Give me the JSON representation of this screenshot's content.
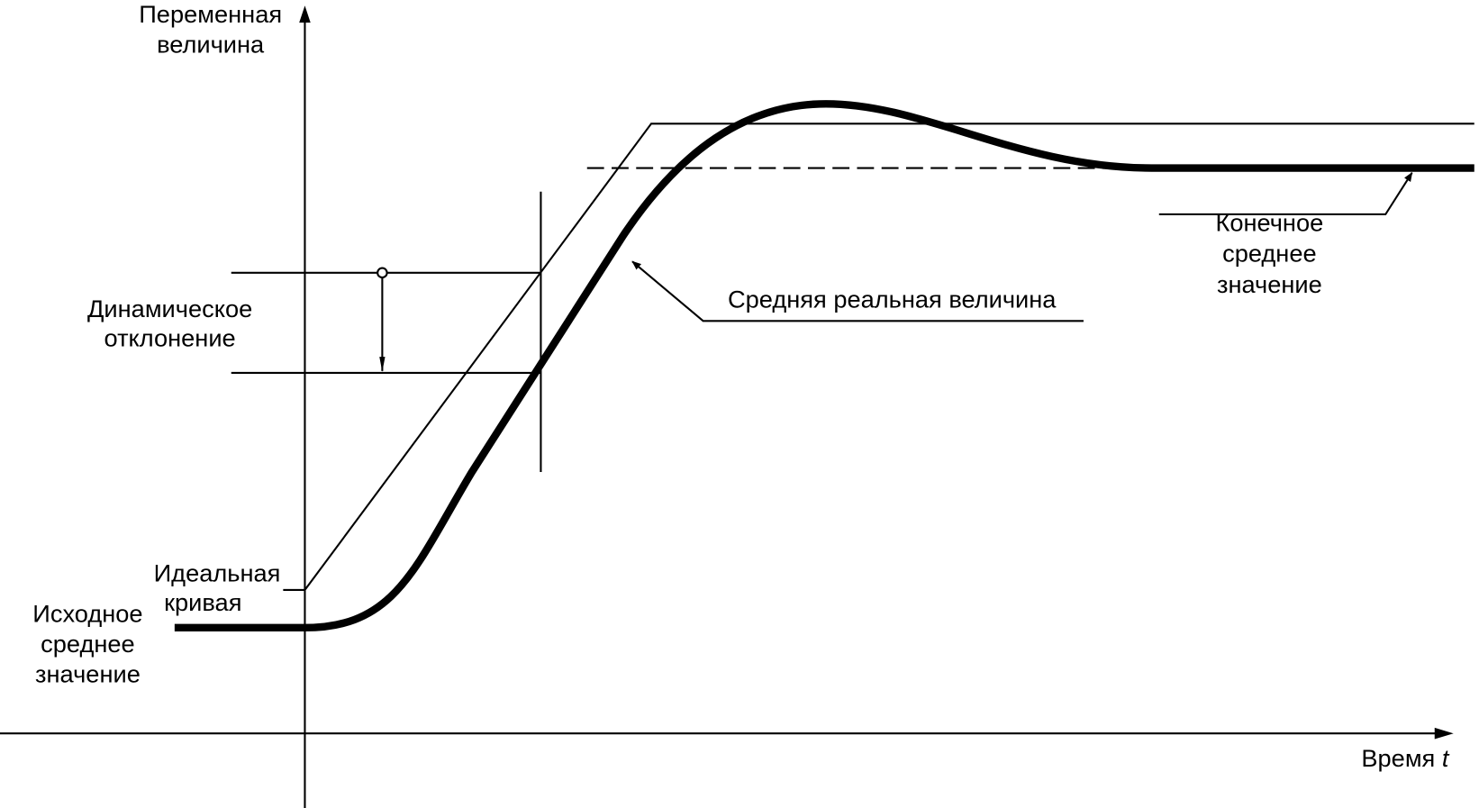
{
  "y_axis_label": [
    "Переменная",
    "величина"
  ],
  "x_axis_label": {
    "text": "Время",
    "variable": "t"
  },
  "labels": {
    "dynamic_deviation": [
      "Динамическое",
      "отклонение"
    ],
    "ideal_curve": [
      "Идеальная",
      "кривая"
    ],
    "initial_mean": [
      "Исходное",
      "среднее",
      "значение"
    ],
    "mean_real_value": "Средняя реальная величина",
    "final_mean": [
      "Конечное",
      "среднее",
      "значение"
    ]
  }
}
